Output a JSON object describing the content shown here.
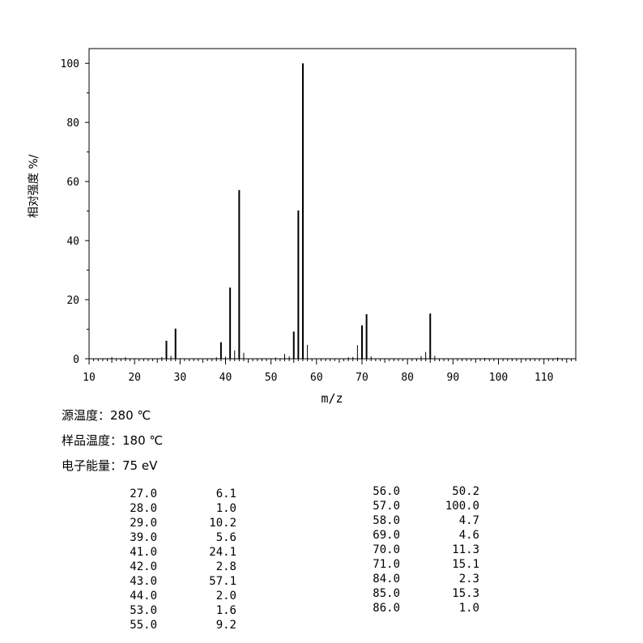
{
  "chart_data": {
    "type": "bar",
    "xlabel": "m/z",
    "ylabel": "相对强度 %/",
    "xlim": [
      10,
      117
    ],
    "ylim": [
      0,
      105
    ],
    "x_ticks": [
      10,
      20,
      30,
      40,
      50,
      60,
      70,
      80,
      90,
      100,
      110
    ],
    "y_ticks": [
      0,
      20,
      40,
      60,
      80,
      100
    ],
    "grid": false,
    "peaks": [
      {
        "mz": 15,
        "value": 0.6
      },
      {
        "mz": 18,
        "value": 0.5
      },
      {
        "mz": 26,
        "value": 0.6
      },
      {
        "mz": 27,
        "value": 6.1
      },
      {
        "mz": 28,
        "value": 1.0
      },
      {
        "mz": 29,
        "value": 10.2
      },
      {
        "mz": 38,
        "value": 0.5
      },
      {
        "mz": 39,
        "value": 5.6
      },
      {
        "mz": 40,
        "value": 0.7
      },
      {
        "mz": 41,
        "value": 24.1
      },
      {
        "mz": 42,
        "value": 2.8
      },
      {
        "mz": 43,
        "value": 57.1
      },
      {
        "mz": 44,
        "value": 2.0
      },
      {
        "mz": 51,
        "value": 0.4
      },
      {
        "mz": 53,
        "value": 1.6
      },
      {
        "mz": 54,
        "value": 0.8
      },
      {
        "mz": 55,
        "value": 9.2
      },
      {
        "mz": 56,
        "value": 50.2
      },
      {
        "mz": 57,
        "value": 100.0
      },
      {
        "mz": 58,
        "value": 4.7
      },
      {
        "mz": 67,
        "value": 0.5
      },
      {
        "mz": 68,
        "value": 0.6
      },
      {
        "mz": 69,
        "value": 4.6
      },
      {
        "mz": 70,
        "value": 11.3
      },
      {
        "mz": 71,
        "value": 15.1
      },
      {
        "mz": 72,
        "value": 0.8
      },
      {
        "mz": 83,
        "value": 0.9
      },
      {
        "mz": 84,
        "value": 2.3
      },
      {
        "mz": 85,
        "value": 15.3
      },
      {
        "mz": 86,
        "value": 1.0
      },
      {
        "mz": 97,
        "value": 0.3
      },
      {
        "mz": 113,
        "value": 0.4
      }
    ]
  },
  "conditions": {
    "source_temp": "源温度：280 ℃",
    "sample_temp": "样品温度：180 ℃",
    "electron_energy": "电子能量：75 eV"
  },
  "peak_table_left": [
    {
      "mz": "27.0",
      "abundance": "6.1"
    },
    {
      "mz": "28.0",
      "abundance": "1.0"
    },
    {
      "mz": "29.0",
      "abundance": "10.2"
    },
    {
      "mz": "39.0",
      "abundance": "5.6"
    },
    {
      "mz": "41.0",
      "abundance": "24.1"
    },
    {
      "mz": "42.0",
      "abundance": "2.8"
    },
    {
      "mz": "43.0",
      "abundance": "57.1"
    },
    {
      "mz": "44.0",
      "abundance": "2.0"
    },
    {
      "mz": "53.0",
      "abundance": "1.6"
    },
    {
      "mz": "55.0",
      "abundance": "9.2"
    }
  ],
  "peak_table_right": [
    {
      "mz": "56.0",
      "abundance": "50.2"
    },
    {
      "mz": "57.0",
      "abundance": "100.0"
    },
    {
      "mz": "58.0",
      "abundance": "4.7"
    },
    {
      "mz": "69.0",
      "abundance": "4.6"
    },
    {
      "mz": "70.0",
      "abundance": "11.3"
    },
    {
      "mz": "71.0",
      "abundance": "15.1"
    },
    {
      "mz": "84.0",
      "abundance": "2.3"
    },
    {
      "mz": "85.0",
      "abundance": "15.3"
    },
    {
      "mz": "86.0",
      "abundance": "1.0"
    }
  ]
}
